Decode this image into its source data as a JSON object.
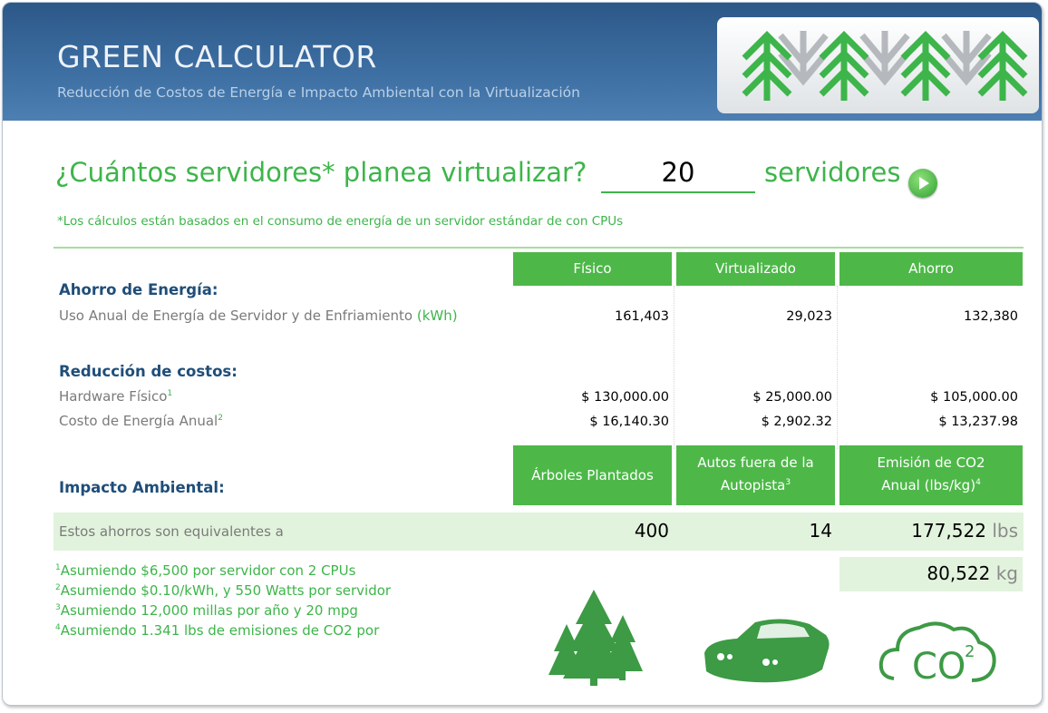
{
  "header": {
    "title": "GREEN CALCULATOR",
    "subtitle": "Reducción de Costos de Energía e Impacto Ambiental con la Virtualización"
  },
  "question": {
    "prefix": "¿Cuántos servidores* planea virtualizar?",
    "input": "20",
    "suffix": "servidores"
  },
  "note": "*Los cálculos están basados en el consumo de energía de un servidor estándar de con CPUs",
  "columns": [
    "Físico",
    "Virtualizado",
    "Ahorro"
  ],
  "energy": {
    "heading": "Ahorro de Energía:",
    "label": "Uso Anual de Energía de Servidor y de Enfriamiento",
    "unit": "(kWh)",
    "values": [
      "161,403",
      "29,023",
      "132,380"
    ]
  },
  "costs": {
    "heading": "Reducción de costos:",
    "rows": [
      {
        "label": "Hardware Físico",
        "sup": "1",
        "values": [
          "$ 130,000.00",
          "$ 25,000.00",
          "$ 105,000.00"
        ]
      },
      {
        "label": "Costo de Energía Anual",
        "sup": "2",
        "values": [
          "$ 16,140.30",
          "$ 2,902.32",
          "$ 13,237.98"
        ]
      }
    ]
  },
  "impact": {
    "heading": "Impacto Ambiental:",
    "columns": [
      {
        "line1": "Árboles Plantados"
      },
      {
        "line1": "Autos fuera de la",
        "line2": "Autopista",
        "sup": "3"
      },
      {
        "line1": "Emisión de CO2",
        "line2": "Anual (lbs/kg)",
        "sup": "4"
      }
    ],
    "label": "Estos ahorros son equivalentes a",
    "values": [
      "400",
      "14",
      "177,522"
    ],
    "lbs_unit": "lbs",
    "kg_value": "80,522",
    "kg_unit": "kg"
  },
  "footnotes": [
    {
      "sup": "1",
      "text": "Asumiendo $6,500 por servidor con 2 CPUs"
    },
    {
      "sup": "2",
      "text": "Asumiendo $0.10/kWh, y 550 Watts por servidor"
    },
    {
      "sup": "3",
      "text": "Asumiendo 12,000 millas por año y 20 mpg"
    },
    {
      "sup": "4",
      "text": "Asumiendo 1.341 lbs de emisiones de CO2 por"
    }
  ],
  "icons": {
    "co2": "CO",
    "co2_sup": "2"
  }
}
